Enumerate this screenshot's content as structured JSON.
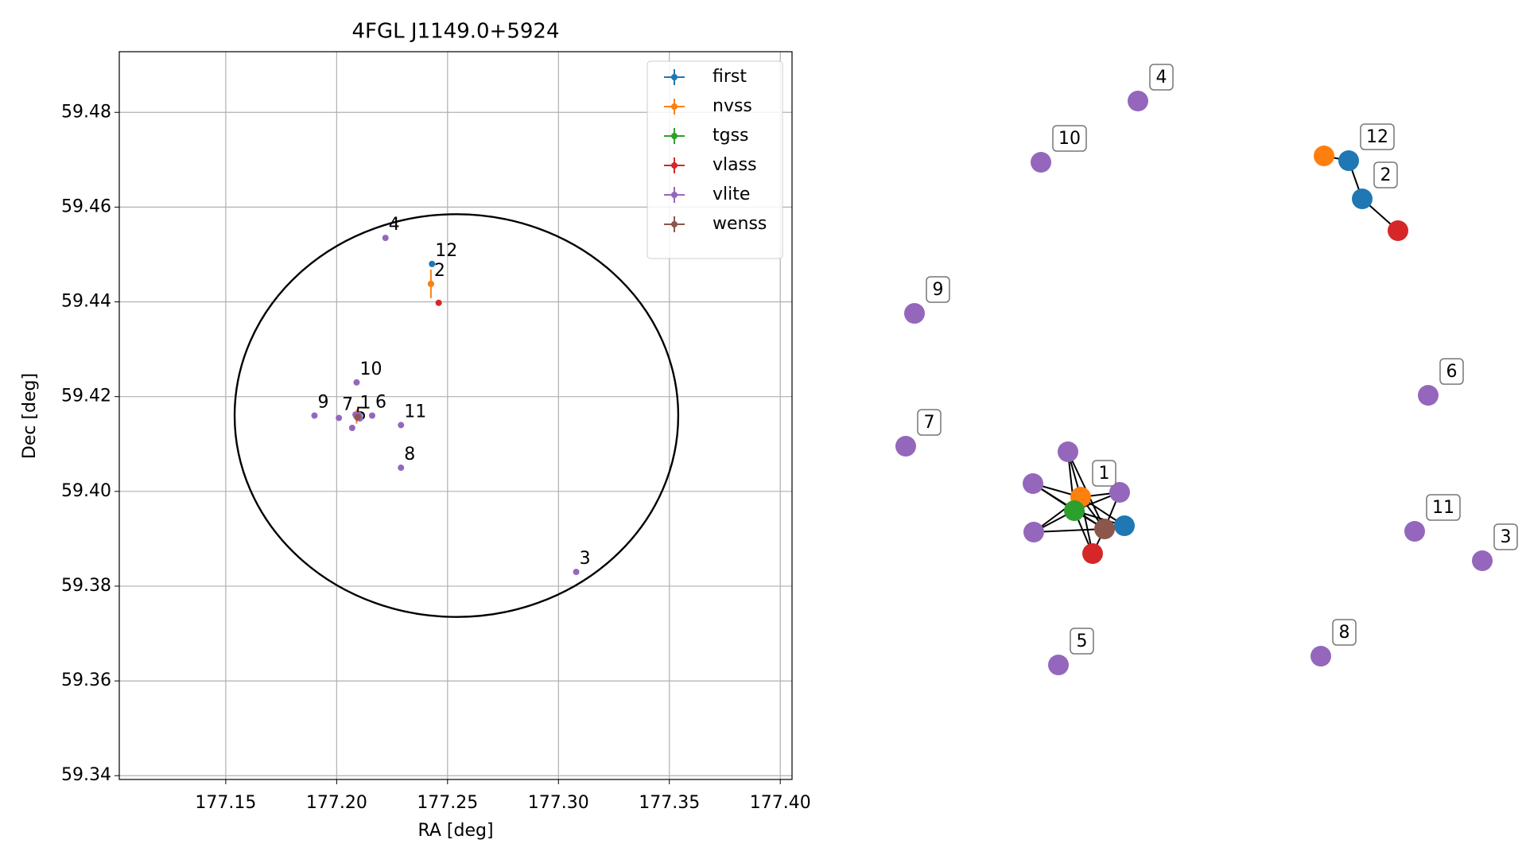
{
  "chart_data": {
    "type": "scatter",
    "title": "4FGL J1149.0+5924",
    "x_label": "RA [deg]",
    "y_label": "Dec [deg]",
    "xlim": [
      177.102,
      177.4053
    ],
    "ylim": [
      59.3392,
      59.4928
    ],
    "xticks": [
      177.15,
      {
        "value": 177.2,
        "label": "177.20"
      },
      177.25,
      {
        "value": 177.3,
        "label": "177.30"
      },
      177.35,
      {
        "value": 177.4,
        "label": "177.40"
      }
    ],
    "yticks": [
      59.34,
      59.36,
      59.38,
      {
        "value": 59.4,
        "label": "59.40"
      },
      59.42,
      59.44,
      59.46,
      59.48
    ],
    "grid": true,
    "legend": "upper right",
    "ellipse": {
      "center": [
        177.254,
        59.416
      ],
      "width": 0.2,
      "height": 0.085
    },
    "series": [
      {
        "name": "first",
        "color": "#1f77b4",
        "x": [
          177.243,
          177.2425,
          177.2098
        ],
        "values": [
          59.448,
          59.4438,
          59.4158
        ],
        "labels": [
          "12",
          "2",
          null
        ]
      },
      {
        "name": "nvss",
        "color": "#ff7f0e",
        "x": [
          177.2425,
          177.209
        ],
        "values": [
          59.4438,
          59.4158
        ],
        "yerr": [
          0.003,
          0.0015
        ],
        "labels": [
          null,
          "1"
        ]
      },
      {
        "name": "tgss",
        "color": "#2ca02c",
        "x": [
          177.2092
        ],
        "values": [
          59.4157
        ],
        "labels": [
          null
        ]
      },
      {
        "name": "vlass",
        "color": "#d62728",
        "x": [
          177.246,
          177.2096
        ],
        "values": [
          59.4398,
          59.4155
        ],
        "labels": [
          null,
          null
        ]
      },
      {
        "name": "vlite",
        "color": "#9467bd",
        "x": [
          177.222,
          177.209,
          177.19,
          177.201,
          177.216,
          177.229,
          177.229,
          177.308,
          177.207,
          177.2085,
          177.2105,
          177.2088,
          177.2102
        ],
        "values": [
          59.4535,
          59.423,
          59.416,
          59.4155,
          59.416,
          59.414,
          59.405,
          59.383,
          59.4134,
          59.4162,
          59.4154,
          59.4159,
          59.4161
        ],
        "labels": [
          "4",
          "10",
          "9",
          "7",
          "6",
          "11",
          "8",
          "3",
          "5",
          null,
          null,
          null,
          null
        ]
      },
      {
        "name": "wenss",
        "color": "#8c564b",
        "x": [
          177.2095
        ],
        "values": [
          59.4157
        ],
        "labels": [
          null
        ]
      }
    ]
  }
}
